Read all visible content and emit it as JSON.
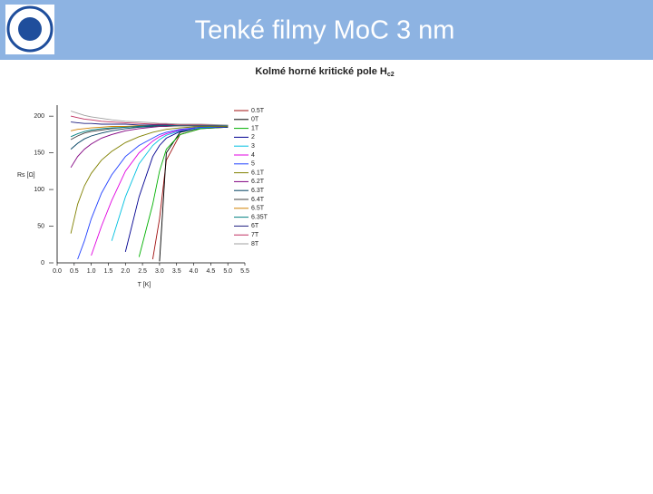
{
  "header": {
    "title": "Tenké filmy MoC 3 nm"
  },
  "chart_data": {
    "type": "line",
    "title": "Kolmé horné kritické pole H",
    "title_sub": "c2",
    "xlabel": "T [K]",
    "ylabel": "Rs [Ω]",
    "xlim": [
      0,
      5.5
    ],
    "ylim": [
      0,
      215
    ],
    "xticks": [
      {
        "value": 0,
        "label": "0.0"
      },
      0.5,
      {
        "value": 1,
        "label": "1.0"
      },
      1.5,
      {
        "value": 2,
        "label": "2.0"
      },
      2.5,
      {
        "value": 3,
        "label": "3.0"
      },
      3.5,
      {
        "value": 4,
        "label": "4.0"
      },
      4.5,
      {
        "value": 5,
        "label": "5.0"
      },
      5.5
    ],
    "yticks": [
      0,
      50,
      100,
      150,
      200
    ],
    "legend": "right",
    "x": [
      0.4,
      0.6,
      0.8,
      1.0,
      1.3,
      1.6,
      2.0,
      2.4,
      2.8,
      3.0,
      3.2,
      3.6,
      4.2,
      5.0
    ],
    "series": [
      {
        "name": "0.5T",
        "color": "#a01010",
        "values": [
          null,
          null,
          null,
          null,
          null,
          null,
          null,
          null,
          5,
          60,
          140,
          175,
          183,
          185
        ]
      },
      {
        "name": "0T",
        "color": "#000000",
        "values": [
          null,
          null,
          null,
          null,
          null,
          null,
          null,
          null,
          null,
          2,
          150,
          178,
          184,
          185
        ]
      },
      {
        "name": "1T",
        "color": "#00b000",
        "values": [
          null,
          null,
          null,
          null,
          null,
          null,
          null,
          8,
          80,
          125,
          155,
          175,
          183,
          185
        ]
      },
      {
        "name": "2",
        "color": "#000090",
        "values": [
          null,
          null,
          null,
          null,
          null,
          null,
          15,
          90,
          145,
          160,
          170,
          179,
          184,
          185
        ]
      },
      {
        "name": "3",
        "color": "#00c0e0",
        "values": [
          null,
          null,
          null,
          null,
          null,
          30,
          90,
          135,
          160,
          168,
          174,
          180,
          184,
          186
        ]
      },
      {
        "name": "4",
        "color": "#e000e0",
        "values": [
          null,
          null,
          null,
          10,
          50,
          85,
          125,
          150,
          166,
          172,
          176,
          181,
          185,
          186
        ]
      },
      {
        "name": "5",
        "color": "#2040ff",
        "values": [
          null,
          5,
          30,
          60,
          95,
          120,
          145,
          160,
          170,
          175,
          178,
          182,
          185,
          186
        ]
      },
      {
        "name": "6.1T",
        "color": "#808000",
        "values": [
          40,
          80,
          105,
          122,
          140,
          152,
          164,
          172,
          178,
          180,
          182,
          184,
          186,
          186
        ]
      },
      {
        "name": "6.2T",
        "color": "#800080",
        "values": [
          130,
          145,
          155,
          162,
          170,
          175,
          180,
          183,
          185,
          186,
          186,
          187,
          187,
          187
        ]
      },
      {
        "name": "6.3T",
        "color": "#004060",
        "values": [
          155,
          163,
          169,
          173,
          177,
          180,
          183,
          185,
          186,
          187,
          187,
          187,
          187,
          187
        ]
      },
      {
        "name": "6.4T",
        "color": "#404040",
        "values": [
          168,
          173,
          177,
          179,
          181,
          183,
          185,
          186,
          187,
          187,
          187,
          187,
          187,
          187
        ]
      },
      {
        "name": "6.5T",
        "color": "#d08000",
        "values": [
          180,
          182,
          183,
          184,
          185,
          186,
          186,
          187,
          187,
          187,
          187,
          187,
          187,
          187
        ]
      },
      {
        "name": "6.35T",
        "color": "#008080",
        "values": [
          172,
          176,
          179,
          181,
          183,
          184,
          185,
          186,
          187,
          187,
          187,
          187,
          187,
          187
        ]
      },
      {
        "name": "6T",
        "color": "#202080",
        "values": [
          192,
          191,
          190,
          190,
          189,
          189,
          189,
          188,
          188,
          188,
          188,
          188,
          188,
          188
        ]
      },
      {
        "name": "7T",
        "color": "#c03060",
        "values": [
          200,
          198,
          196,
          195,
          193,
          192,
          191,
          190,
          189,
          189,
          189,
          188,
          188,
          188
        ]
      },
      {
        "name": "8T",
        "color": "#a0a0a0",
        "values": [
          207,
          204,
          201,
          199,
          197,
          195,
          193,
          192,
          191,
          190,
          190,
          189,
          189,
          188
        ]
      }
    ]
  }
}
